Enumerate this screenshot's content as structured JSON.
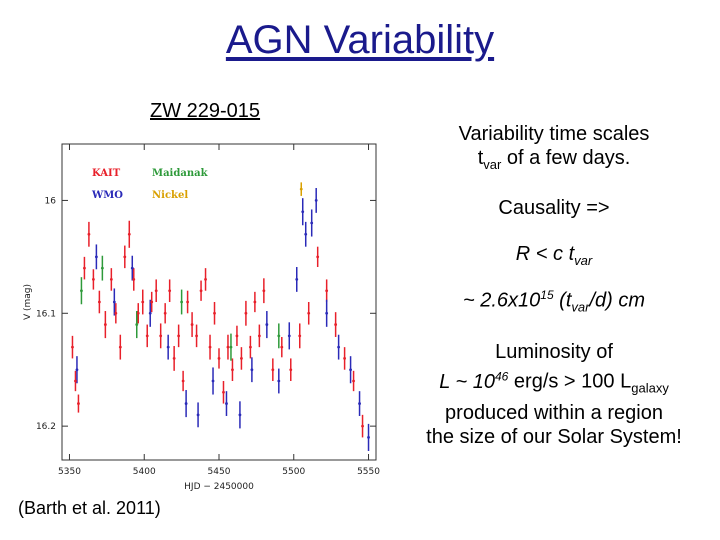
{
  "slide": {
    "title": "AGN Variability",
    "subtitle": "ZW 229-015",
    "citation": "(Barth et al. 2011)"
  },
  "text": {
    "line1": "Variability time scales",
    "line2_t": "t",
    "line2_sub": "var",
    "line2_rest": " of a few days.",
    "causality": "Causality =>",
    "r_pre": "R < c t",
    "r_sub": "var",
    "est_pre": "~ 2.6x10",
    "est_sup": "15",
    "est_mid": " (t",
    "est_sub": "var",
    "est_post": "/d) cm",
    "lum1": "Luminosity of",
    "lum2_pre": "L ~ 10",
    "lum2_sup": "46",
    "lum2_mid": " erg/s > 100 L",
    "lum2_sub": "galaxy",
    "lum3": "produced within a region",
    "lum4": "the size of our Solar System!"
  },
  "chart_data": {
    "type": "scatter",
    "xlabel": "HJD − 2450000",
    "ylabel": "V (mag)",
    "xlim": [
      5345,
      5555
    ],
    "ylim": [
      16.23,
      15.95
    ],
    "xticks": [
      5350,
      5400,
      5450,
      5500,
      5550
    ],
    "yticks": [
      16,
      16.1,
      16.2
    ],
    "legend": [
      "KAIT",
      "Maidanak",
      "WMO",
      "Nickel"
    ],
    "series": [
      {
        "name": "KAIT",
        "color": "#e8202a",
        "points": [
          [
            5352,
            16.13
          ],
          [
            5354,
            16.16
          ],
          [
            5356,
            16.18
          ],
          [
            5360,
            16.06
          ],
          [
            5363,
            16.03
          ],
          [
            5366,
            16.07
          ],
          [
            5370,
            16.09
          ],
          [
            5374,
            16.11
          ],
          [
            5378,
            16.07
          ],
          [
            5381,
            16.1
          ],
          [
            5384,
            16.13
          ],
          [
            5387,
            16.05
          ],
          [
            5390,
            16.03
          ],
          [
            5393,
            16.07
          ],
          [
            5396,
            16.1
          ],
          [
            5399,
            16.09
          ],
          [
            5402,
            16.12
          ],
          [
            5405,
            16.09
          ],
          [
            5408,
            16.08
          ],
          [
            5411,
            16.12
          ],
          [
            5414,
            16.1
          ],
          [
            5417,
            16.08
          ],
          [
            5420,
            16.14
          ],
          [
            5423,
            16.12
          ],
          [
            5426,
            16.16
          ],
          [
            5429,
            16.09
          ],
          [
            5432,
            16.11
          ],
          [
            5435,
            16.12
          ],
          [
            5438,
            16.08
          ],
          [
            5441,
            16.07
          ],
          [
            5444,
            16.13
          ],
          [
            5447,
            16.1
          ],
          [
            5450,
            16.14
          ],
          [
            5453,
            16.17
          ],
          [
            5456,
            16.13
          ],
          [
            5459,
            16.15
          ],
          [
            5462,
            16.12
          ],
          [
            5465,
            16.14
          ],
          [
            5468,
            16.1
          ],
          [
            5471,
            16.13
          ],
          [
            5474,
            16.09
          ],
          [
            5477,
            16.12
          ],
          [
            5480,
            16.08
          ],
          [
            5486,
            16.15
          ],
          [
            5492,
            16.13
          ],
          [
            5498,
            16.15
          ],
          [
            5504,
            16.12
          ],
          [
            5510,
            16.1
          ],
          [
            5516,
            16.05
          ],
          [
            5522,
            16.08
          ],
          [
            5528,
            16.11
          ],
          [
            5534,
            16.14
          ],
          [
            5540,
            16.16
          ],
          [
            5546,
            16.2
          ]
        ],
        "errors": [
          0.01,
          0.009,
          0.008,
          0.01,
          0.011,
          0.009,
          0.01,
          0.012,
          0.01,
          0.009,
          0.011,
          0.01,
          0.012,
          0.01,
          0.009,
          0.011,
          0.01,
          0.009,
          0.01,
          0.011,
          0.009,
          0.01,
          0.011,
          0.01,
          0.009,
          0.01,
          0.011,
          0.01,
          0.009,
          0.01,
          0.011,
          0.01,
          0.009,
          0.01,
          0.011,
          0.01,
          0.009,
          0.01,
          0.011,
          0.01,
          0.009,
          0.01,
          0.011,
          0.01,
          0.009,
          0.01,
          0.011,
          0.01,
          0.009,
          0.01,
          0.011,
          0.01,
          0.009,
          0.01
        ]
      },
      {
        "name": "Maidanak",
        "color": "#2e9a3a",
        "points": [
          [
            5358,
            16.08
          ],
          [
            5372,
            16.06
          ],
          [
            5395,
            16.11
          ],
          [
            5425,
            16.09
          ],
          [
            5458,
            16.13
          ],
          [
            5490,
            16.12
          ]
        ],
        "errors": [
          0.012,
          0.011,
          0.012,
          0.011,
          0.012,
          0.011
        ]
      },
      {
        "name": "WMO",
        "color": "#2a2ab8",
        "points": [
          [
            5355,
            16.15
          ],
          [
            5368,
            16.05
          ],
          [
            5380,
            16.09
          ],
          [
            5392,
            16.06
          ],
          [
            5404,
            16.1
          ],
          [
            5416,
            16.13
          ],
          [
            5428,
            16.18
          ],
          [
            5436,
            16.19
          ],
          [
            5446,
            16.16
          ],
          [
            5455,
            16.18
          ],
          [
            5464,
            16.19
          ],
          [
            5472,
            16.15
          ],
          [
            5482,
            16.11
          ],
          [
            5490,
            16.16
          ],
          [
            5497,
            16.12
          ],
          [
            5502,
            16.07
          ],
          [
            5506,
            16.01
          ],
          [
            5508,
            16.03
          ],
          [
            5512,
            16.02
          ],
          [
            5515,
            16.0
          ],
          [
            5522,
            16.1
          ],
          [
            5530,
            16.13
          ],
          [
            5538,
            16.15
          ],
          [
            5544,
            16.18
          ],
          [
            5550,
            16.21
          ]
        ],
        "errors": [
          0.012,
          0.011,
          0.012,
          0.011,
          0.012,
          0.011,
          0.012,
          0.011,
          0.012,
          0.011,
          0.012,
          0.011,
          0.012,
          0.011,
          0.012,
          0.011,
          0.012,
          0.011,
          0.012,
          0.011,
          0.012,
          0.011,
          0.012,
          0.011,
          0.012
        ]
      },
      {
        "name": "Nickel",
        "color": "#d9a000",
        "points": [
          [
            5505,
            15.99
          ]
        ],
        "errors": [
          0.006
        ]
      }
    ]
  }
}
